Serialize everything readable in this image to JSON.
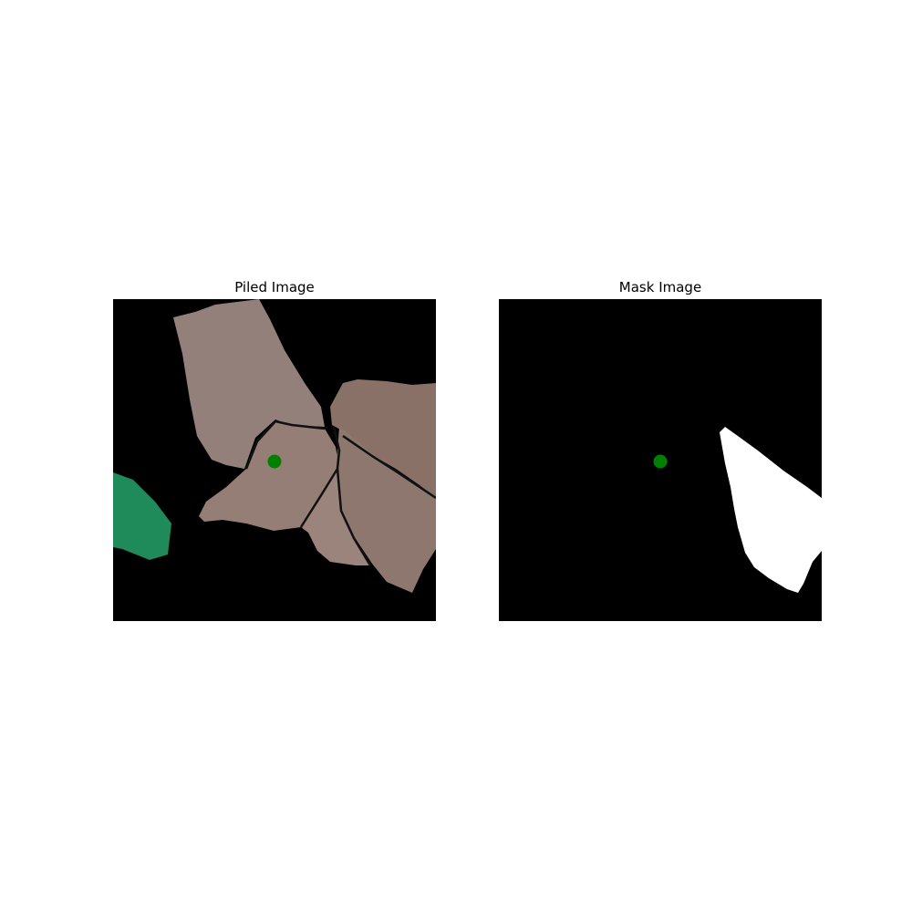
{
  "panels": [
    {
      "title": "Piled Image",
      "background_color": "#000000",
      "marker_color": "#008000",
      "cloth_color": "#8e7a70",
      "accent_cloth_color": "#1f8a5a"
    },
    {
      "title": "Mask Image",
      "background_color": "#000000",
      "marker_color": "#008000",
      "mask_color": "#ffffff"
    }
  ]
}
